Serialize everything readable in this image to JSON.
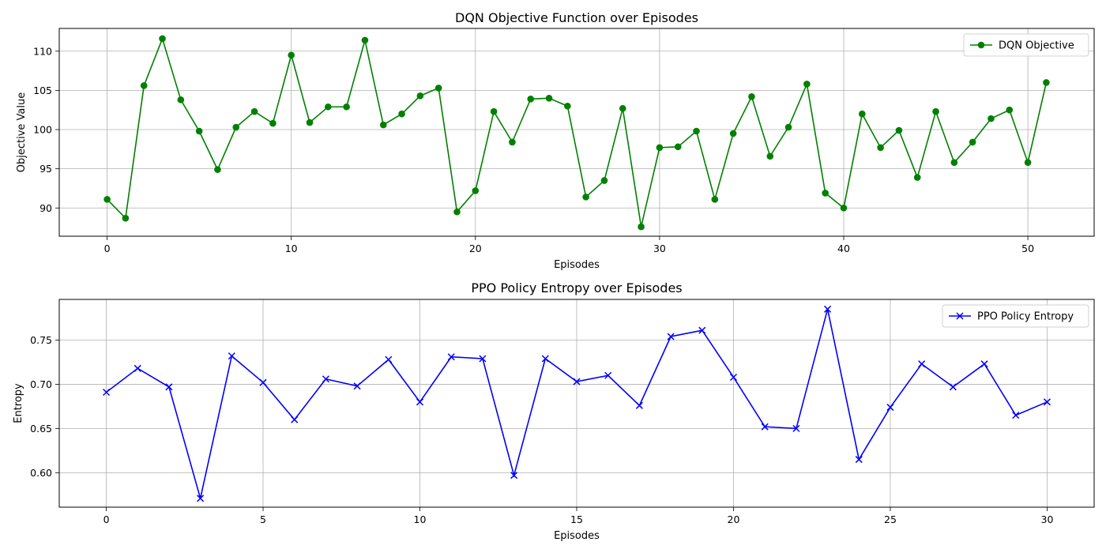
{
  "chart_data": [
    {
      "type": "line",
      "title": "DQN Objective Function over Episodes",
      "xlabel": "Episodes",
      "ylabel": "Objective Value",
      "xlim": [
        -2.6,
        53.6
      ],
      "ylim": [
        86.4,
        112.9
      ],
      "xticks": [
        0,
        10,
        20,
        30,
        40,
        50
      ],
      "yticks": [
        90,
        95,
        100,
        105,
        110
      ],
      "grid": true,
      "legend": "top-right",
      "series": [
        {
          "name": "DQN Objective",
          "color": "#008000",
          "marker": "circle",
          "x": [
            0,
            1,
            2,
            3,
            4,
            5,
            6,
            7,
            8,
            9,
            10,
            11,
            12,
            13,
            14,
            15,
            16,
            17,
            18,
            19,
            20,
            21,
            22,
            23,
            24,
            25,
            26,
            27,
            28,
            29,
            30,
            31,
            32,
            33,
            34,
            35,
            36,
            37,
            38,
            39,
            40,
            41,
            42,
            43,
            44,
            45,
            46,
            47,
            48,
            49,
            50,
            51
          ],
          "values": [
            91.1,
            88.7,
            105.6,
            111.6,
            103.8,
            99.8,
            94.9,
            100.3,
            102.3,
            100.8,
            109.5,
            100.9,
            102.9,
            102.9,
            111.4,
            100.6,
            102.0,
            104.3,
            105.3,
            89.5,
            92.2,
            102.3,
            98.4,
            103.9,
            104.0,
            103.0,
            91.4,
            93.5,
            102.7,
            87.6,
            97.7,
            97.8,
            99.8,
            91.1,
            99.5,
            104.2,
            96.6,
            100.3,
            105.8,
            91.9,
            90.0,
            102.0,
            97.7,
            99.9,
            93.9,
            102.3,
            95.8,
            98.4,
            101.4,
            102.5,
            95.8,
            106.0
          ]
        }
      ]
    },
    {
      "type": "line",
      "title": "PPO Policy Entropy over Episodes",
      "xlabel": "Episodes",
      "ylabel": "Entropy",
      "xlim": [
        -1.5,
        31.5
      ],
      "ylim": [
        0.561,
        0.796
      ],
      "xticks": [
        0,
        5,
        10,
        15,
        20,
        25,
        30
      ],
      "yticks": [
        0.6,
        0.65,
        0.7,
        0.75
      ],
      "ytick_labels": [
        "0.60",
        "0.65",
        "0.70",
        "0.75"
      ],
      "grid": true,
      "legend": "top-right",
      "series": [
        {
          "name": "PPO Policy Entropy",
          "color": "#0000ff",
          "marker": "x",
          "x": [
            0,
            1,
            2,
            3,
            4,
            5,
            6,
            7,
            8,
            9,
            10,
            11,
            12,
            13,
            14,
            15,
            16,
            17,
            18,
            19,
            20,
            21,
            22,
            23,
            24,
            25,
            26,
            27,
            28,
            29,
            30
          ],
          "values": [
            0.691,
            0.718,
            0.697,
            0.571,
            0.732,
            0.702,
            0.66,
            0.706,
            0.698,
            0.728,
            0.68,
            0.731,
            0.729,
            0.597,
            0.729,
            0.703,
            0.71,
            0.676,
            0.754,
            0.761,
            0.708,
            0.652,
            0.65,
            0.785,
            0.615,
            0.674,
            0.723,
            0.697,
            0.723,
            0.665,
            0.68
          ]
        }
      ]
    }
  ]
}
